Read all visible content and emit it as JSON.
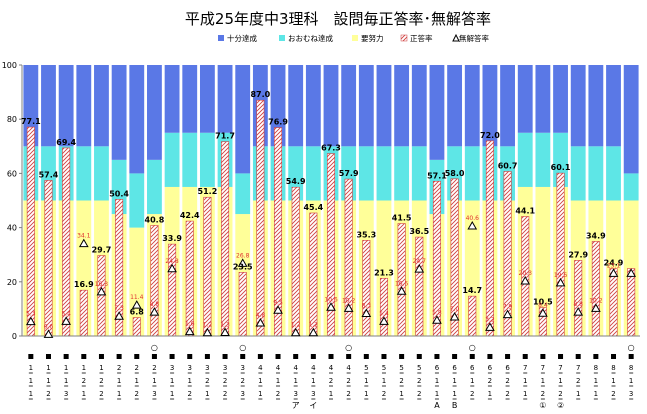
{
  "chart_data": {
    "type": "bar",
    "title": "平成25年度中3理科　設問毎正答率･無解答率",
    "legend": [
      {
        "name": "十分達成",
        "color": "#5a78e6"
      },
      {
        "name": "おおむね達成",
        "color": "#5ee6e6"
      },
      {
        "name": "要努力",
        "color": "#ffff99"
      },
      {
        "name": "正答率",
        "color": "#d04040"
      },
      {
        "name": "無解答率",
        "color": "#000000"
      }
    ],
    "legend_placement": "top-right",
    "ylim": [
      0,
      100
    ],
    "yticks": [
      0,
      20,
      40,
      60,
      80,
      100
    ],
    "grid": false,
    "categories": [
      {
        "mark": "",
        "parts": [
          "1",
          "1",
          "1"
        ],
        "sub": ""
      },
      {
        "mark": "",
        "parts": [
          "1",
          "1",
          "2"
        ],
        "sub": ""
      },
      {
        "mark": "",
        "parts": [
          "1",
          "1",
          "3"
        ],
        "sub": ""
      },
      {
        "mark": "",
        "parts": [
          "1",
          "2",
          "1"
        ],
        "sub": ""
      },
      {
        "mark": "",
        "parts": [
          "1",
          "2",
          "2"
        ],
        "sub": ""
      },
      {
        "mark": "",
        "parts": [
          "2",
          "1",
          "1"
        ],
        "sub": ""
      },
      {
        "mark": "",
        "parts": [
          "2",
          "1",
          "2"
        ],
        "sub": ""
      },
      {
        "mark": "○",
        "parts": [
          "2",
          "1",
          "3"
        ],
        "sub": ""
      },
      {
        "mark": "",
        "parts": [
          "3",
          "1",
          "1"
        ],
        "sub": ""
      },
      {
        "mark": "",
        "parts": [
          "3",
          "1",
          "2"
        ],
        "sub": ""
      },
      {
        "mark": "",
        "parts": [
          "3",
          "2",
          "1"
        ],
        "sub": ""
      },
      {
        "mark": "",
        "parts": [
          "3",
          "2",
          "2"
        ],
        "sub": ""
      },
      {
        "mark": "○",
        "parts": [
          "3",
          "2",
          "3"
        ],
        "sub": ""
      },
      {
        "mark": "",
        "parts": [
          "4",
          "1",
          "1"
        ],
        "sub": ""
      },
      {
        "mark": "",
        "parts": [
          "4",
          "1",
          "2"
        ],
        "sub": ""
      },
      {
        "mark": "",
        "parts": [
          "4",
          "1",
          "3"
        ],
        "sub": "ア"
      },
      {
        "mark": "",
        "parts": [
          "4",
          "1",
          "3"
        ],
        "sub": "イ"
      },
      {
        "mark": "",
        "parts": [
          "4",
          "2",
          "1"
        ],
        "sub": ""
      },
      {
        "mark": "○",
        "parts": [
          "4",
          "2",
          "2"
        ],
        "sub": ""
      },
      {
        "mark": "",
        "parts": [
          "5",
          "1",
          "1"
        ],
        "sub": ""
      },
      {
        "mark": "",
        "parts": [
          "5",
          "1",
          "2"
        ],
        "sub": ""
      },
      {
        "mark": "",
        "parts": [
          "5",
          "2",
          "1"
        ],
        "sub": ""
      },
      {
        "mark": "",
        "parts": [
          "5",
          "2",
          "2"
        ],
        "sub": ""
      },
      {
        "mark": "",
        "parts": [
          "6",
          "1",
          "1"
        ],
        "sub": "A"
      },
      {
        "mark": "",
        "parts": [
          "6",
          "1",
          "1"
        ],
        "sub": "B"
      },
      {
        "mark": "○",
        "parts": [
          "6",
          "1",
          "2"
        ],
        "sub": ""
      },
      {
        "mark": "",
        "parts": [
          "6",
          "2",
          "1"
        ],
        "sub": ""
      },
      {
        "mark": "",
        "parts": [
          "6",
          "2",
          "2"
        ],
        "sub": ""
      },
      {
        "mark": "",
        "parts": [
          "7",
          "1",
          "1"
        ],
        "sub": ""
      },
      {
        "mark": "",
        "parts": [
          "7",
          "1",
          "2"
        ],
        "sub": "①"
      },
      {
        "mark": "",
        "parts": [
          "7",
          "1",
          "2"
        ],
        "sub": "②"
      },
      {
        "mark": "",
        "parts": [
          "7",
          "2",
          "1"
        ],
        "sub": ""
      },
      {
        "mark": "",
        "parts": [
          "8",
          "1",
          "1"
        ],
        "sub": ""
      },
      {
        "mark": "",
        "parts": [
          "8",
          "1",
          "2"
        ],
        "sub": ""
      },
      {
        "mark": "○",
        "parts": [
          "8",
          "1",
          "3"
        ],
        "sub": ""
      }
    ],
    "series": [
      {
        "name": "要努力",
        "values": [
          50,
          50,
          50,
          50,
          50,
          45,
          40,
          45,
          55,
          55,
          55,
          55,
          45,
          50,
          50,
          50,
          50,
          50,
          50,
          50,
          50,
          50,
          50,
          45,
          50,
          50,
          50,
          50,
          55,
          55,
          55,
          50,
          50,
          50,
          50
        ]
      },
      {
        "name": "おおむね達成",
        "values": [
          20,
          20,
          20,
          20,
          20,
          20,
          20,
          20,
          20,
          20,
          20,
          20,
          15,
          20,
          20,
          20,
          20,
          20,
          20,
          20,
          20,
          20,
          20,
          20,
          20,
          20,
          20,
          20,
          20,
          20,
          20,
          20,
          20,
          20,
          10
        ]
      },
      {
        "name": "十分達成",
        "values": [
          30,
          30,
          30,
          30,
          30,
          35,
          40,
          35,
          25,
          25,
          25,
          25,
          40,
          30,
          30,
          30,
          30,
          30,
          30,
          30,
          30,
          30,
          30,
          35,
          30,
          30,
          30,
          30,
          25,
          25,
          25,
          30,
          30,
          30,
          40
        ]
      },
      {
        "name": "正答率",
        "values": [
          77.1,
          57.4,
          69.4,
          16.9,
          29.7,
          50.4,
          6.8,
          40.8,
          33.9,
          42.4,
          51.2,
          71.7,
          23.5,
          87.0,
          76.9,
          54.9,
          45.4,
          67.3,
          57.9,
          35.3,
          21.3,
          41.5,
          36.5,
          57.1,
          58.0,
          14.7,
          72.0,
          60.7,
          44.1,
          10.5,
          60.1,
          27.9,
          34.9,
          24.9,
          24.9
        ]
      },
      {
        "name": "無解答率",
        "values": [
          5.3,
          0.6,
          5.4,
          34.1,
          16.3,
          7.3,
          11.4,
          8.8,
          24.8,
          1.6,
          1.2,
          1.3,
          26.8,
          4.8,
          9.5,
          1.2,
          1.2,
          10.6,
          10.2,
          8.3,
          5.4,
          16.5,
          24.7,
          5.8,
          7.0,
          40.6,
          3.2,
          7.9,
          20.3,
          8.4,
          19.6,
          8.8,
          10.2,
          23.1,
          23.1
        ]
      }
    ],
    "value_labels": [
      "77.1",
      "57.4",
      "69.4",
      "16.9",
      "29.7",
      "50.4",
      "6.8",
      "40.8",
      "33.9",
      "42.4",
      "51.2",
      "71.7",
      "23.5",
      "87.0",
      "76.9",
      "54.9",
      "45.4",
      "67.3",
      "57.9",
      "35.3",
      "21.3",
      "41.5",
      "36.5",
      "57.1",
      "58.0",
      "14.7",
      "72.0",
      "60.7",
      "44.1",
      "10.5",
      "60.1",
      "27.9",
      "34.9",
      "24.9",
      ""
    ],
    "noans_labels": [
      "5.3",
      "0.6",
      "5.4",
      "34.1",
      "16.3",
      "7.3",
      "11.4",
      "8.8",
      "24.8",
      "1.6",
      "1.2",
      "1.3",
      "26.8",
      "4.8",
      "9.5",
      "1.2",
      "1.2",
      "10.6",
      "10.2",
      "8.3",
      "5.4",
      "16.5",
      "24.7",
      "5.8",
      "7.0",
      "40.6",
      "3.2",
      "7.9",
      "20.3",
      "8.4",
      "19.6",
      "8.8",
      "10.2",
      "23.1",
      ""
    ]
  }
}
